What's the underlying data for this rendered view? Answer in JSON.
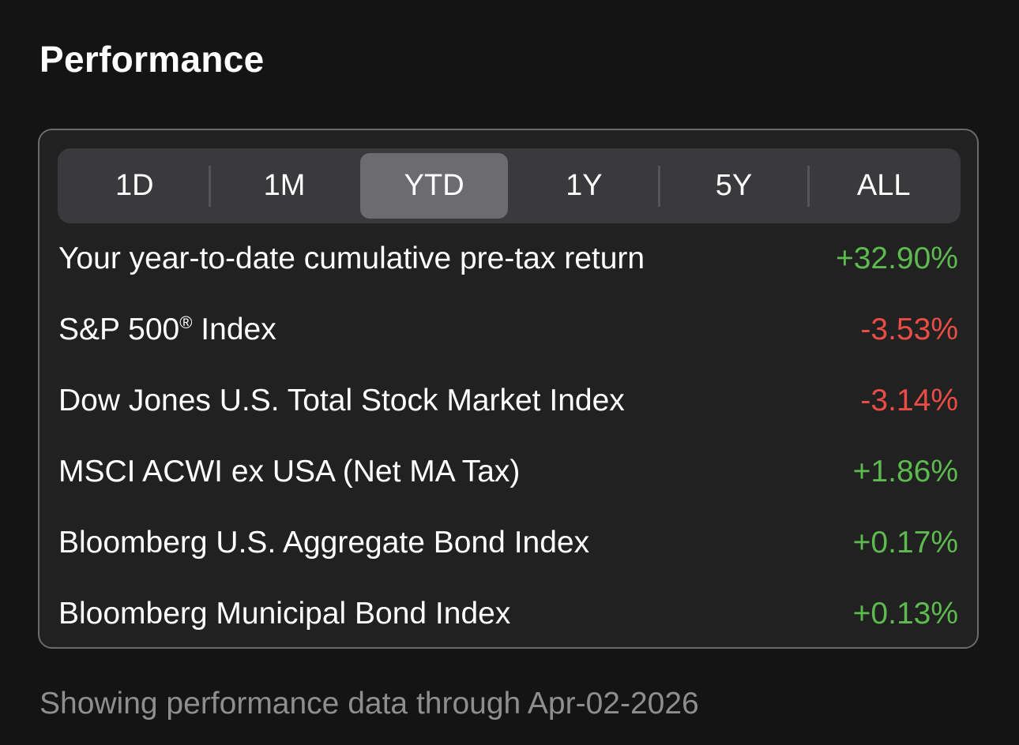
{
  "header": {
    "title": "Performance"
  },
  "tabs": {
    "selected": "YTD",
    "items": [
      {
        "label": "1D"
      },
      {
        "label": "1M"
      },
      {
        "label": "YTD"
      },
      {
        "label": "1Y"
      },
      {
        "label": "5Y"
      },
      {
        "label": "ALL"
      }
    ]
  },
  "rows": [
    {
      "label": "Your year-to-date cumulative pre-tax return",
      "value": "+32.90%",
      "status": "positive"
    },
    {
      "label_main": "S&P 500",
      "label_mark": "®",
      "label_tail": " Index",
      "value": "-3.53%",
      "status": "negative"
    },
    {
      "label": "Dow Jones U.S. Total Stock Market Index",
      "value": "-3.14%",
      "status": "negative"
    },
    {
      "label": "MSCI ACWI ex USA (Net MA Tax)",
      "value": "+1.86%",
      "status": "positive"
    },
    {
      "label": "Bloomberg U.S. Aggregate Bond Index",
      "value": "+0.17%",
      "status": "positive"
    },
    {
      "label": "Bloomberg Municipal Bond Index",
      "value": "+0.13%",
      "status": "positive"
    }
  ],
  "footer": {
    "note": "Showing performance data through Apr-02-2026"
  },
  "colors": {
    "positive": "#5cba4e",
    "negative": "#ea4c46",
    "background": "#141414",
    "card": "#212121",
    "segment_active": "#6c6c70"
  }
}
